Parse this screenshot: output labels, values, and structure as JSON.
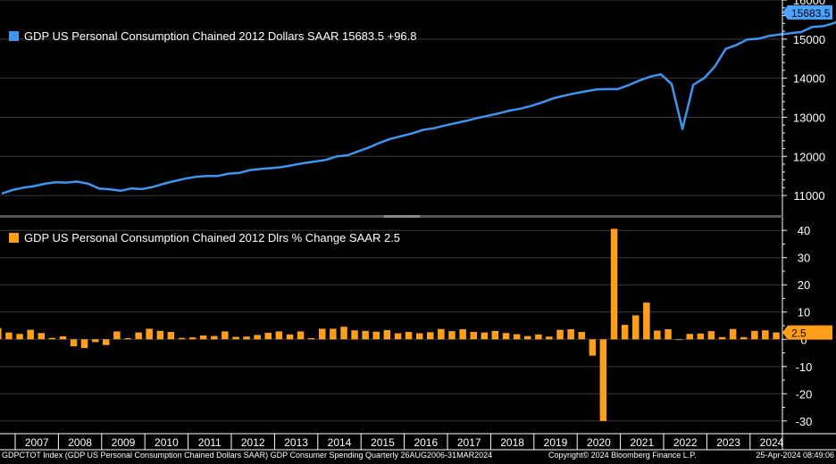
{
  "colors": {
    "line": "#3d95f2",
    "bar": "#ff9e1b",
    "grid": "#3a3a3a",
    "axis": "#ffffff",
    "lastbox_top": "#4aa3ff",
    "lastbox_bottom": "#ff9e1b"
  },
  "legend_top": {
    "text": "GDP US Personal Consumption Chained 2012 Dollars SAAR  15683.5  +96.8",
    "icon": "blue-square-icon"
  },
  "legend_bottom": {
    "text": "GDP US Personal Consumption Chained 2012 Dlrs % Change SAAR  2.5",
    "icon": "orange-square-icon"
  },
  "footer": {
    "left": "GDPCTOT Index (GDP US Personal Consumption Chained Dollars SAAR) GDP Consumer Spending  Quarterly 26AUG2006-31MAR2024",
    "mid": "Copyright© 2024 Bloomberg Finance L.P.",
    "right": "25-Apr-2024 08:49:06"
  },
  "chart_data": [
    {
      "type": "line",
      "title": "GDP US Personal Consumption Chained 2012 Dollars SAAR",
      "last_value_label": "15683.5",
      "change_label": "+96.8",
      "ylim": [
        10500,
        16000
      ],
      "yticks": [
        "11000",
        "12000",
        "13000",
        "14000",
        "15000",
        "16000"
      ],
      "xlabels": [
        "2007",
        "2008",
        "2009",
        "2010",
        "2011",
        "2012",
        "2013",
        "2014",
        "2015",
        "2016",
        "2017",
        "2018",
        "2019",
        "2020",
        "2021",
        "2022",
        "2023",
        "2024"
      ],
      "series": [
        {
          "name": "GDP US Personal Consumption Chained 2012 Dollars SAAR",
          "values": [
            11050,
            11140,
            11200,
            11240,
            11300,
            11340,
            11330,
            11355,
            11300,
            11180,
            11160,
            11120,
            11180,
            11165,
            11220,
            11300,
            11370,
            11430,
            11480,
            11500,
            11500,
            11560,
            11580,
            11650,
            11680,
            11700,
            11730,
            11780,
            11830,
            11870,
            11910,
            12000,
            12030,
            12130,
            12230,
            12350,
            12450,
            12520,
            12590,
            12680,
            12720,
            12790,
            12850,
            12910,
            12980,
            13040,
            13100,
            13170,
            13220,
            13290,
            13380,
            13480,
            13550,
            13610,
            13660,
            13710,
            13720,
            13720,
            13820,
            13940,
            14040,
            14100,
            13850,
            12700,
            13830,
            14000,
            14300,
            14750,
            14850,
            14990,
            15010,
            15080,
            15120,
            15150,
            15180,
            15310,
            15330,
            15410,
            15520,
            15590,
            15683.5
          ]
        }
      ]
    },
    {
      "type": "bar",
      "title": "GDP US Personal Consumption Chained 2012 Dlrs % Change SAAR",
      "last_value_label": "2.5",
      "ylim": [
        -34,
        44
      ],
      "yticks": [
        "40",
        "30",
        "20",
        "10",
        "0",
        "-10",
        "-20",
        "-30"
      ],
      "xlabels": [
        "2007",
        "2008",
        "2009",
        "2010",
        "2011",
        "2012",
        "2013",
        "2014",
        "2015",
        "2016",
        "2017",
        "2018",
        "2019",
        "2020",
        "2021",
        "2022",
        "2023",
        "2024"
      ],
      "series": [
        {
          "name": "GDP US Personal Consumption Chained 2012 Dlrs % Change SAAR",
          "values": [
            2.8,
            4.1,
            2.5,
            2.0,
            3.5,
            2.3,
            0.5,
            1.1,
            -2.6,
            -3.2,
            -1.0,
            -2.1,
            2.9,
            0.4,
            2.5,
            3.9,
            3.1,
            2.7,
            0.5,
            0.7,
            1.4,
            1.2,
            2.9,
            0.9,
            1.0,
            1.6,
            2.4,
            2.9,
            1.8,
            2.9,
            0.4,
            3.9,
            3.9,
            4.6,
            3.3,
            3.1,
            2.8,
            3.4,
            2.2,
            2.7,
            2.2,
            2.6,
            3.8,
            3.0,
            3.7,
            2.7,
            2.5,
            3.1,
            2.3,
            1.9,
            1.2,
            1.8,
            1.0,
            3.5,
            3.7,
            2.7,
            -6.0,
            -30.0,
            40.6,
            5.3,
            8.8,
            13.5,
            3.2,
            3.7,
            0.0,
            2.0,
            2.1,
            3.0,
            0.8,
            3.8,
            0.8,
            3.1,
            3.3,
            2.5
          ]
        }
      ]
    }
  ]
}
